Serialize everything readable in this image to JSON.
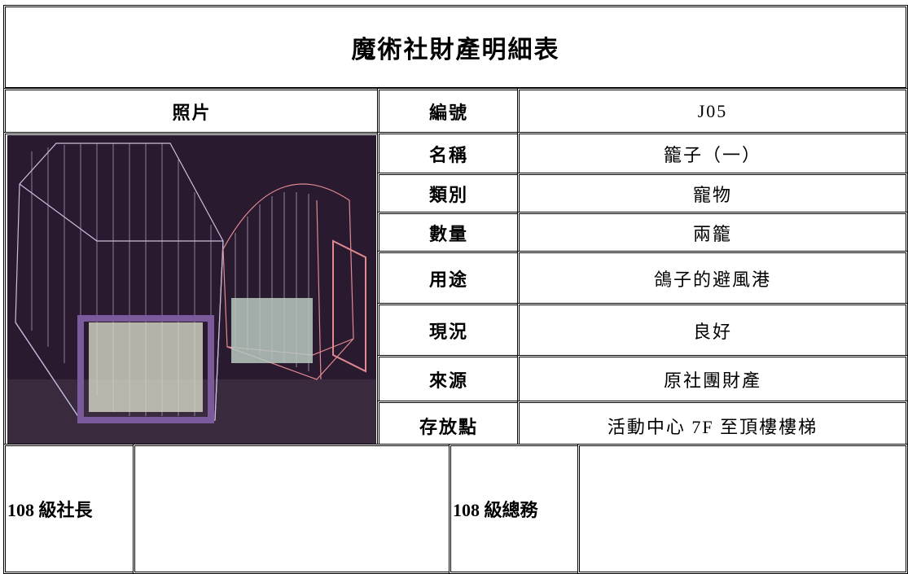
{
  "title": "魔術社財產明細表",
  "header": {
    "photo_label": "照片",
    "id_label": "編號",
    "id_value": "J05"
  },
  "rows": [
    {
      "label": "名稱",
      "value": "籠子（一）"
    },
    {
      "label": "類別",
      "value": "寵物"
    },
    {
      "label": "數量",
      "value": "兩籠"
    },
    {
      "label": "用途",
      "value": "鴿子的避風港"
    },
    {
      "label": "現況",
      "value": "良好"
    },
    {
      "label": "來源",
      "value": "原社團財產"
    },
    {
      "label": "存放點",
      "value": "活動中心 7F 至頂樓樓梯"
    }
  ],
  "signatures": [
    {
      "label": "108 級社長"
    },
    {
      "label": "108 級總務"
    }
  ]
}
